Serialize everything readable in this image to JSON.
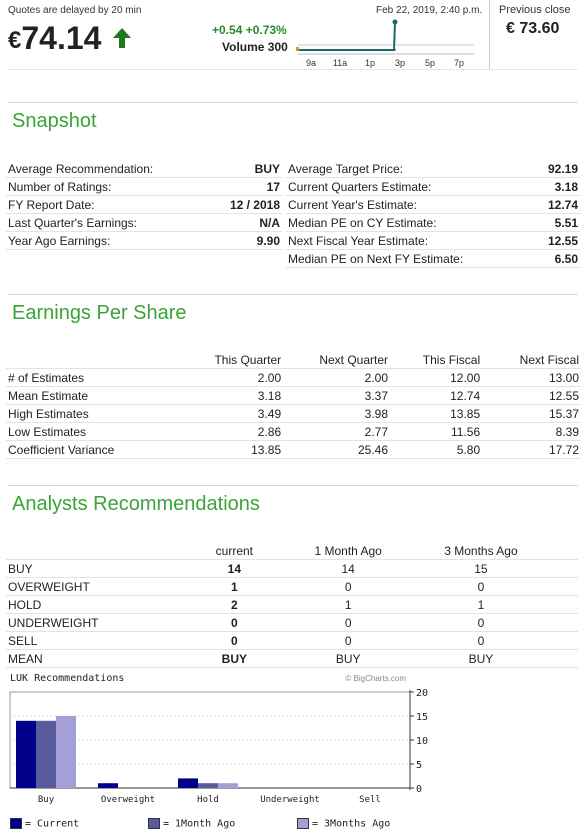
{
  "quote": {
    "delay_note": "Quotes are delayed by 20 min",
    "currency": "€",
    "price": "74.14",
    "change": "+0.54 +0.73%",
    "volume": "Volume 300",
    "datetime": "Feb 22, 2019, 2:40 p.m.",
    "previous_close_label": "Previous close",
    "previous_close": "€ 73.60",
    "up_color": "#1f7a1f",
    "intraday_ticks": [
      "9a",
      "11a",
      "1p",
      "3p",
      "5p",
      "7p"
    ]
  },
  "snapshot": {
    "title": "Snapshot",
    "left": [
      {
        "label": "Average Recommendation:",
        "value": "BUY"
      },
      {
        "label": "Number of Ratings:",
        "value": "17"
      },
      {
        "label": "FY Report Date:",
        "value": "12 / 2018"
      },
      {
        "label": "Last Quarter's Earnings:",
        "value": "N/A"
      },
      {
        "label": "Year Ago Earnings:",
        "value": "9.90"
      }
    ],
    "right": [
      {
        "label": "Average Target Price:",
        "value": "92.19"
      },
      {
        "label": "Current Quarters Estimate:",
        "value": "3.18"
      },
      {
        "label": "Current Year's Estimate:",
        "value": "12.74"
      },
      {
        "label": "Median PE on CY Estimate:",
        "value": "5.51"
      },
      {
        "label": "Next Fiscal Year Estimate:",
        "value": "12.55"
      },
      {
        "label": "Median PE on Next FY Estimate:",
        "value": "6.50"
      }
    ]
  },
  "eps": {
    "title": "Earnings Per Share",
    "columns": [
      "This Quarter",
      "Next Quarter",
      "This Fiscal",
      "Next Fiscal"
    ],
    "rows": [
      {
        "label": "# of Estimates",
        "values": [
          "2.00",
          "2.00",
          "12.00",
          "13.00"
        ]
      },
      {
        "label": "Mean Estimate",
        "values": [
          "3.18",
          "3.37",
          "12.74",
          "12.55"
        ]
      },
      {
        "label": "High Estimates",
        "values": [
          "3.49",
          "3.98",
          "13.85",
          "15.37"
        ]
      },
      {
        "label": "Low Estimates",
        "values": [
          "2.86",
          "2.77",
          "11.56",
          "8.39"
        ]
      },
      {
        "label": "Coefficient Variance",
        "values": [
          "13.85",
          "25.46",
          "5.80",
          "17.72"
        ]
      }
    ]
  },
  "analysts": {
    "title": "Analysts Recommendations",
    "columns": [
      "current",
      "1 Month Ago",
      "3 Months Ago"
    ],
    "rows": [
      {
        "label": "BUY",
        "values": [
          "14",
          "14",
          "15"
        ]
      },
      {
        "label": "OVERWEIGHT",
        "values": [
          "1",
          "0",
          "0"
        ]
      },
      {
        "label": "HOLD",
        "values": [
          "2",
          "1",
          "1"
        ]
      },
      {
        "label": "UNDERWEIGHT",
        "values": [
          "0",
          "0",
          "0"
        ]
      },
      {
        "label": "SELL",
        "values": [
          "0",
          "0",
          "0"
        ]
      },
      {
        "label": "MEAN",
        "values": [
          "BUY",
          "BUY",
          "BUY"
        ]
      }
    ]
  },
  "chart_data": {
    "type": "bar",
    "title": "LUK Recommendations",
    "source": "© BigCharts.com",
    "categories": [
      "Buy",
      "Overweight",
      "Hold",
      "Underweight",
      "Sell"
    ],
    "series": [
      {
        "name": "Current",
        "values": [
          14,
          1,
          2,
          0,
          0
        ],
        "color": "#00008b"
      },
      {
        "name": "1Month Ago",
        "values": [
          14,
          0,
          1,
          0,
          0
        ],
        "color": "#5a5a9e"
      },
      {
        "name": "3Months Ago",
        "values": [
          15,
          0,
          1,
          0,
          0
        ],
        "color": "#a49fd6"
      }
    ],
    "yticks": [
      "0",
      "5",
      "10",
      "15",
      "20"
    ],
    "ylim": [
      0,
      20
    ],
    "legend_position": "bottom",
    "legend": [
      "= Current",
      "= 1Month Ago",
      "= 3Months Ago"
    ]
  }
}
